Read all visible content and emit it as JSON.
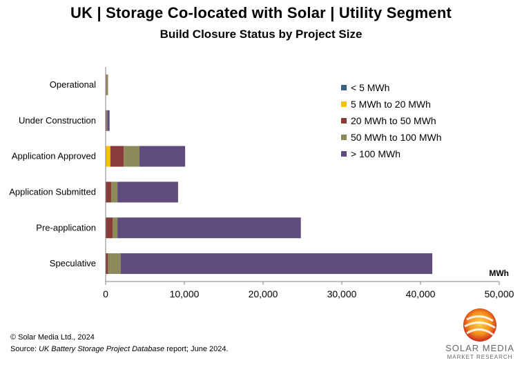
{
  "chart_data": {
    "type": "bar",
    "orientation": "horizontal",
    "stacked": true,
    "title": "UK | Storage Co-located with Solar | Utility Segment",
    "subtitle": "Build Closure Status by Project Size",
    "unit_label": "MWh",
    "xlim": [
      0,
      50000
    ],
    "xticks": [
      0,
      10000,
      20000,
      30000,
      40000,
      50000
    ],
    "xtick_labels": [
      "0",
      "10,000",
      "20,000",
      "30,000",
      "40,000",
      "50,000"
    ],
    "grid": false,
    "legend_position": "top-right",
    "categories": [
      "Operational",
      "Under Construction",
      "Application Approved",
      "Application Submitted",
      "Pre-application",
      "Speculative"
    ],
    "series": [
      {
        "name": "< 5 MWh",
        "color": "#3A6186",
        "values": [
          0,
          0,
          0,
          0,
          0,
          0
        ]
      },
      {
        "name": "5 MWh to 20 MWh",
        "color": "#F2C400",
        "values": [
          60,
          0,
          600,
          0,
          0,
          0
        ]
      },
      {
        "name": "20 MWh to 50 MWh",
        "color": "#8B3A3A",
        "values": [
          50,
          100,
          1700,
          700,
          900,
          300
        ]
      },
      {
        "name": "50 MWh to 100 MWh",
        "color": "#8C8A5A",
        "values": [
          200,
          100,
          2000,
          800,
          600,
          1600
        ]
      },
      {
        "name": "> 100 MWh",
        "color": "#5F4B7D",
        "values": [
          0,
          300,
          5800,
          7700,
          23300,
          39600
        ]
      }
    ]
  },
  "footer": {
    "copyright": "© Solar Media Ltd., 2024",
    "source_prefix": "Source: ",
    "source_report": "UK Battery Storage Project Database",
    "source_suffix": " report; June 2024."
  },
  "logo": {
    "name": "SOLAR MEDIA",
    "sub": "MARKET RESEARCH"
  }
}
